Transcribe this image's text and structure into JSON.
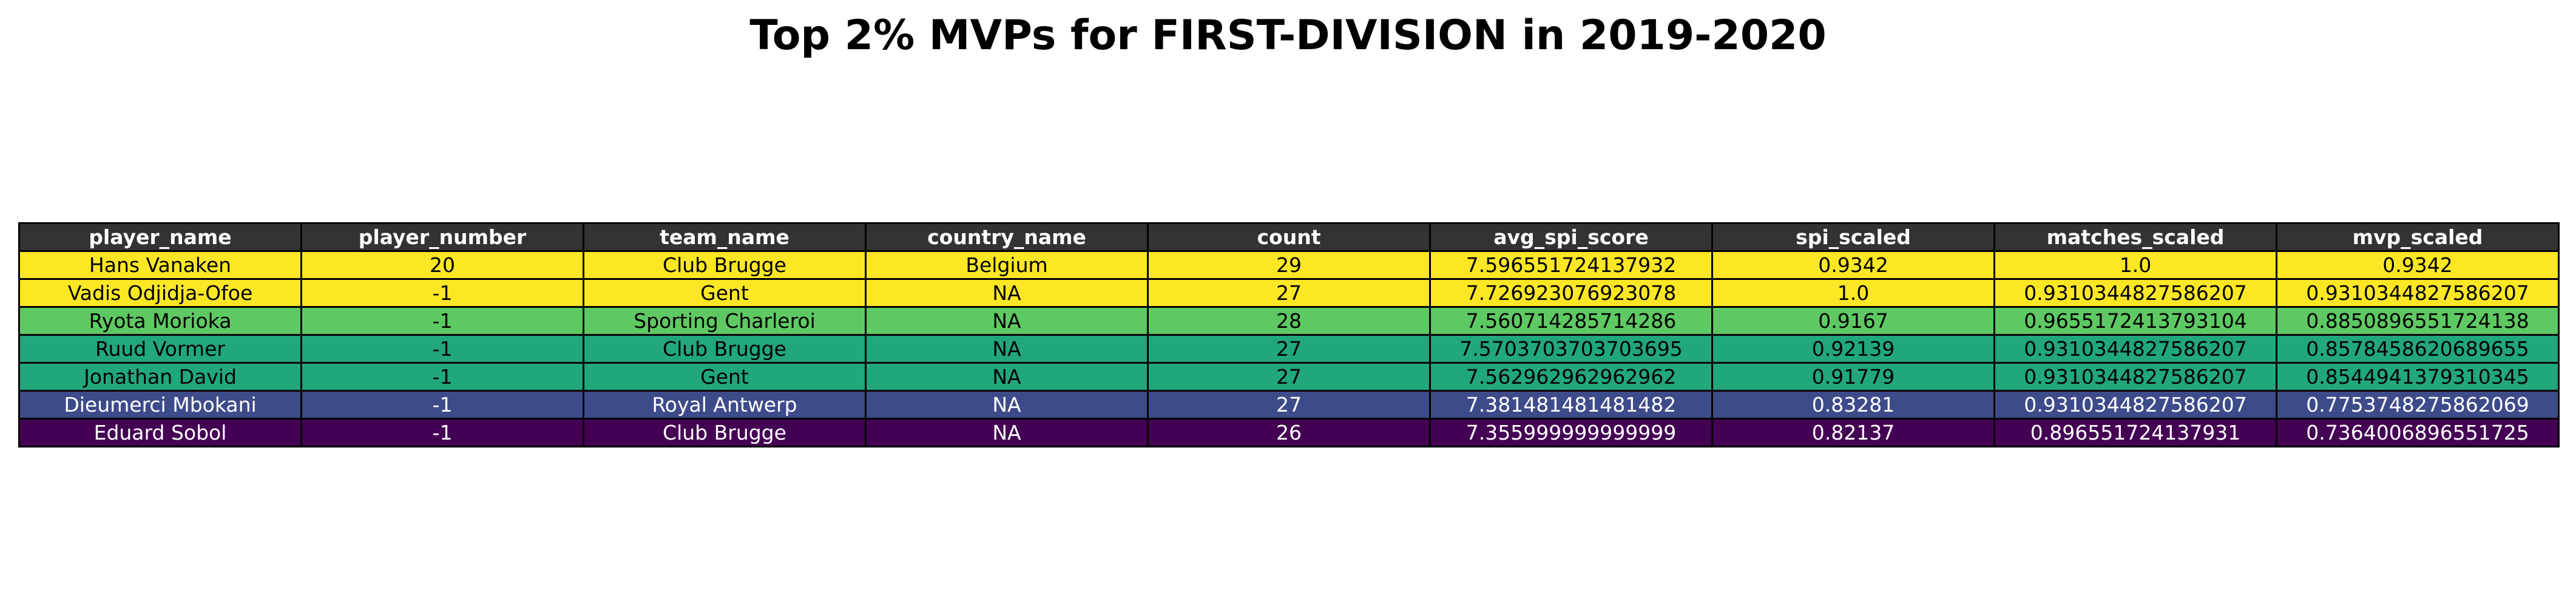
{
  "chart_data": {
    "type": "table",
    "title": "Top 2% MVPs for FIRST-DIVISION in 2019-2020",
    "columns": [
      "player_name",
      "player_number",
      "team_name",
      "country_name",
      "count",
      "avg_spi_score",
      "spi_scaled",
      "matches_scaled",
      "mvp_scaled"
    ],
    "rows": [
      {
        "cells": [
          "Hans Vanaken",
          "20",
          "Club Brugge",
          "Belgium",
          "29",
          "7.596551724137932",
          "0.9342",
          "1.0",
          "0.9342"
        ],
        "bg": "#fde725",
        "fg": "#000000"
      },
      {
        "cells": [
          "Vadis Odjidja-Ofoe",
          "-1",
          "Gent",
          "NA",
          "27",
          "7.726923076923078",
          "1.0",
          "0.9310344827586207",
          "0.9310344827586207"
        ],
        "bg": "#fde725",
        "fg": "#000000"
      },
      {
        "cells": [
          "Ryota Morioka",
          "-1",
          "Sporting Charleroi",
          "NA",
          "28",
          "7.560714285714286",
          "0.9167",
          "0.9655172413793104",
          "0.8850896551724138"
        ],
        "bg": "#5ec962",
        "fg": "#000000"
      },
      {
        "cells": [
          "Ruud Vormer",
          "-1",
          "Club Brugge",
          "NA",
          "27",
          "7.5703703703703695",
          "0.92139",
          "0.9310344827586207",
          "0.8578458620689655"
        ],
        "bg": "#21a67e",
        "fg": "#000000"
      },
      {
        "cells": [
          "Jonathan David",
          "-1",
          "Gent",
          "NA",
          "27",
          "7.562962962962962",
          "0.91779",
          "0.9310344827586207",
          "0.8544941379310345"
        ],
        "bg": "#21a67e",
        "fg": "#000000"
      },
      {
        "cells": [
          "Dieumerci Mbokani",
          "-1",
          "Royal Antwerp",
          "NA",
          "27",
          "7.381481481481482",
          "0.83281",
          "0.9310344827586207",
          "0.7753748275862069"
        ],
        "bg": "#3e4b8a",
        "fg": "#ffffff"
      },
      {
        "cells": [
          "Eduard Sobol",
          "-1",
          "Club Brugge",
          "NA",
          "26",
          "7.355999999999999",
          "0.82137",
          "0.896551724137931",
          "0.7364006896551725"
        ],
        "bg": "#440154",
        "fg": "#ffffff"
      }
    ]
  }
}
